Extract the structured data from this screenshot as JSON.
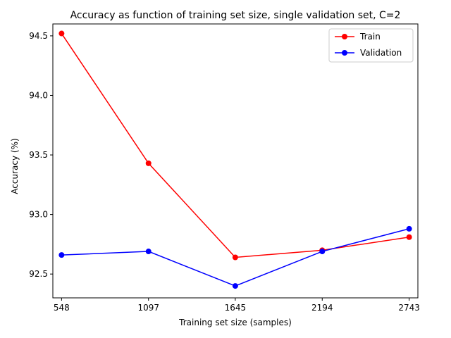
{
  "chart_data": {
    "type": "line",
    "title": "Accuracy as function of training set size, single validation set, C=2",
    "xlabel": "Training set size (samples)",
    "ylabel": "Accuracy (%)",
    "x": [
      548,
      1097,
      1645,
      2194,
      2743
    ],
    "x_tick_labels": [
      "548",
      "1097",
      "1645",
      "2194",
      "2743"
    ],
    "xlim": [
      493,
      2798
    ],
    "ylim": [
      92.3,
      94.6
    ],
    "y_ticks": [
      92.5,
      93.0,
      93.5,
      94.0,
      94.5
    ],
    "y_tick_labels": [
      "92.5",
      "93.0",
      "93.5",
      "94.0",
      "94.5"
    ],
    "grid": false,
    "legend_position": "top-right",
    "series": [
      {
        "name": "Train",
        "color": "#ff0000",
        "values": [
          94.52,
          93.43,
          92.64,
          92.7,
          92.81
        ]
      },
      {
        "name": "Validation",
        "color": "#0000ff",
        "values": [
          92.66,
          92.69,
          92.4,
          92.69,
          92.88
        ]
      }
    ]
  }
}
